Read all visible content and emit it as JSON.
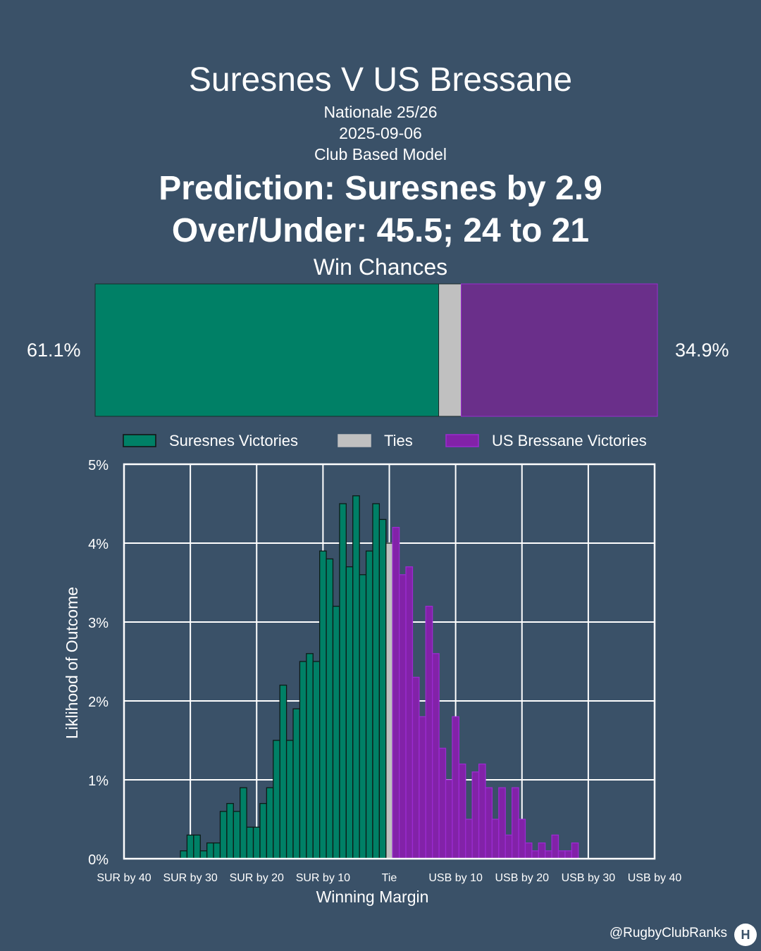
{
  "header": {
    "title": "Suresnes V US Bressane",
    "competition": "Nationale 25/26",
    "date": "2025-09-06",
    "model": "Club Based Model",
    "prediction": "Prediction: Suresnes by 2.9",
    "over_under": "Over/Under: 45.5; 24 to 21"
  },
  "win_chances": {
    "title": "Win Chances",
    "home_label": "61.1%",
    "away_label": "34.9%",
    "home": 61.1,
    "tie": 4.0,
    "away": 34.9
  },
  "colors": {
    "background": "#3a5168",
    "home": "#008066",
    "tie": "#c0c0c0",
    "away": "#6a2f8a",
    "away_bar": "#8222a8",
    "away_edge": "#9b2bd0"
  },
  "legend": [
    "Suresnes Victories",
    "Ties",
    "US Bressane Victories"
  ],
  "footer": {
    "handle": "@RugbyClubRanks",
    "logo": "H"
  },
  "chart_data": {
    "type": "bar",
    "xlabel": "Winning Margin",
    "ylabel": "Liklihood of Outcome",
    "xlim": [
      -40,
      40
    ],
    "ylim": [
      0,
      5
    ],
    "grid": true,
    "legend_position": "top",
    "x_ticks": [
      {
        "value": -40,
        "label": "SUR by 40"
      },
      {
        "value": -30,
        "label": "SUR by 30"
      },
      {
        "value": -20,
        "label": "SUR by 20"
      },
      {
        "value": -10,
        "label": "SUR by 10"
      },
      {
        "value": 0,
        "label": "Tie"
      },
      {
        "value": 10,
        "label": "USB by 10"
      },
      {
        "value": 20,
        "label": "USB by 20"
      },
      {
        "value": 30,
        "label": "USB by 30"
      },
      {
        "value": 40,
        "label": "USB by 40"
      }
    ],
    "y_ticks": [
      {
        "value": 0,
        "label": "0%"
      },
      {
        "value": 1,
        "label": "1%"
      },
      {
        "value": 2,
        "label": "2%"
      },
      {
        "value": 3,
        "label": "3%"
      },
      {
        "value": 4,
        "label": "4%"
      },
      {
        "value": 5,
        "label": "5%"
      }
    ],
    "series": [
      {
        "name": "Suresnes Victories",
        "x": [
          -31,
          -30,
          -29,
          -28,
          -27,
          -26,
          -25,
          -24,
          -23,
          -22,
          -21,
          -20,
          -19,
          -18,
          -17,
          -16,
          -15,
          -14,
          -13,
          -12,
          -11,
          -10,
          -9,
          -8,
          -7,
          -6,
          -5,
          -4,
          -3,
          -2,
          -1
        ],
        "values": [
          0.1,
          0.3,
          0.3,
          0.1,
          0.2,
          0.2,
          0.6,
          0.7,
          0.6,
          0.9,
          0.4,
          0.4,
          0.7,
          0.9,
          1.5,
          2.2,
          1.5,
          1.9,
          2.5,
          2.6,
          2.5,
          3.9,
          3.8,
          3.2,
          4.5,
          3.7,
          4.6,
          3.6,
          3.9,
          4.5,
          4.3
        ]
      },
      {
        "name": "Ties",
        "x": [
          0
        ],
        "values": [
          4.0
        ]
      },
      {
        "name": "US Bressane Victories",
        "x": [
          1,
          2,
          3,
          4,
          5,
          6,
          7,
          8,
          9,
          10,
          11,
          12,
          13,
          14,
          15,
          16,
          17,
          18,
          19,
          20,
          21,
          22,
          23,
          24,
          25,
          26,
          27,
          28,
          29,
          30
        ],
        "values": [
          4.2,
          3.6,
          3.7,
          2.3,
          1.8,
          3.2,
          2.6,
          1.4,
          1.0,
          1.8,
          1.2,
          0.5,
          1.1,
          1.2,
          0.9,
          0.5,
          0.9,
          0.3,
          0.9,
          0.5,
          0.2,
          0.1,
          0.2,
          0.1,
          0.3,
          0.1,
          0.1,
          0.2,
          0.0,
          0.0
        ]
      }
    ]
  }
}
